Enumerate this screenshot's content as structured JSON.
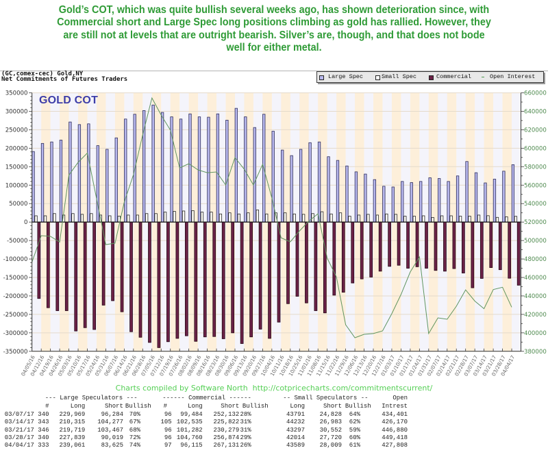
{
  "header": {
    "lines": [
      "Gold’s COT, which was quite bullish several weeks ago, has shown deterioration since, with",
      "Commercial short and Large Spec long positions climbing as gold has rallied. However, they",
      "are still not at levels that are outright bearish. Silver’s are, though, and that does not bode",
      "well for either metal."
    ]
  },
  "chart": {
    "source_line1": "(GC,comex-cec) Gold,NY",
    "source_line2": "Net Commitments of Futures Traders",
    "watermark_title": "GOLD COT",
    "legend": [
      {
        "label": "Large Spec",
        "color": "#b8b8ee"
      },
      {
        "label": "Small Spec",
        "color": "#fffdf5"
      },
      {
        "label": "Commercial",
        "color": "#6b2247"
      },
      {
        "label": "Open Interest",
        "color": "#5f955f"
      }
    ],
    "attribution": "Charts compiled by Software North  http://cotpricecharts.com/commitmentscurrent/"
  },
  "chart_data": {
    "type": "bar",
    "title": "Net Commitments of Futures Traders",
    "subtitle": "(GC,comex-cec) Gold,NY",
    "annotation": "GOLD COT",
    "xlabel": "",
    "ylabel": "",
    "legend_position": "top-right",
    "grid": true,
    "categories": [
      "04/05/16",
      "04/12/16",
      "04/19/16",
      "04/26/16",
      "05/03/16",
      "05/10/16",
      "05/17/16",
      "05/24/16",
      "05/31/16",
      "06/07/16",
      "06/14/16",
      "06/21/16",
      "06/28/16",
      "07/05/16",
      "07/12/16",
      "07/19/16",
      "07/26/16",
      "08/02/16",
      "08/09/16",
      "08/16/16",
      "08/23/16",
      "08/30/16",
      "09/06/16",
      "09/13/16",
      "09/20/16",
      "09/27/16",
      "10/04/16",
      "10/11/16",
      "10/18/16",
      "10/25/16",
      "11/01/16",
      "11/08/16",
      "11/15/16",
      "11/22/16",
      "11/29/16",
      "12/06/16",
      "12/13/16",
      "12/20/16",
      "12/27/16",
      "01/03/17",
      "01/10/17",
      "01/17/17",
      "01/24/17",
      "01/31/17",
      "02/07/17",
      "02/14/17",
      "02/21/17",
      "02/28/17",
      "03/07/17",
      "03/14/17",
      "03/21/17",
      "03/28/17",
      "04/04/17"
    ],
    "series": [
      {
        "name": "Large Spec",
        "type": "bar",
        "axis": "left",
        "color": "#b8b8ee",
        "values": [
          191000,
          213000,
          217000,
          222000,
          271000,
          264000,
          266000,
          207000,
          197000,
          228000,
          279000,
          292000,
          302000,
          317000,
          297000,
          285000,
          279000,
          293000,
          285000,
          284000,
          293000,
          276000,
          308000,
          285000,
          256000,
          292000,
          246000,
          195000,
          180000,
          197000,
          215000,
          217000,
          177000,
          167000,
          152000,
          136000,
          130000,
          115000,
          97000,
          95000,
          110000,
          107000,
          110000,
          120000,
          118000,
          110000,
          125000,
          164000,
          133685,
          106038,
          116252,
          137820,
          155436
        ]
      },
      {
        "name": "Small Spec",
        "type": "bar",
        "axis": "left",
        "color": "#fffdf5",
        "values": [
          17000,
          17000,
          23000,
          19000,
          23000,
          21000,
          23000,
          19000,
          17000,
          16000,
          19000,
          19000,
          23000,
          23000,
          27000,
          29000,
          30000,
          31000,
          27000,
          27000,
          22000,
          25000,
          22000,
          25000,
          33000,
          22000,
          25000,
          25000,
          22000,
          21000,
          23000,
          28000,
          22000,
          25000,
          16000,
          19000,
          21000,
          19000,
          22000,
          21000,
          16000,
          16000,
          17000,
          12500,
          17000,
          17000,
          16000,
          16000,
          18963,
          17249,
          12745,
          14294,
          15580
        ]
      },
      {
        "name": "Commercial",
        "type": "bar",
        "axis": "left",
        "color": "#6b2247",
        "values": [
          -207000,
          -232000,
          -240000,
          -240000,
          -295000,
          -286000,
          -291000,
          -225000,
          -213000,
          -243000,
          -297000,
          -312000,
          -326000,
          -340000,
          -324000,
          -315000,
          -308000,
          -323000,
          -311000,
          -310000,
          -316000,
          -300000,
          -329000,
          -311000,
          -290000,
          -315000,
          -271000,
          -221000,
          -201000,
          -219000,
          -240000,
          -246000,
          -198000,
          -190000,
          -165000,
          -154000,
          -149000,
          -133000,
          -120000,
          -117000,
          -125000,
          -121000,
          -125000,
          -131000,
          -133000,
          -126000,
          -138000,
          -178000,
          -152648,
          -123287,
          -128997,
          -152114,
          -171016
        ]
      },
      {
        "name": "Open Interest",
        "type": "line",
        "axis": "right",
        "color": "#5f955f",
        "values": [
          476700,
          505300,
          504500,
          498400,
          570900,
          584700,
          594800,
          545300,
          495600,
          497100,
          541600,
          571300,
          614400,
          654400,
          635900,
          619600,
          578700,
          583200,
          576500,
          573500,
          574300,
          560200,
          589900,
          577300,
          560200,
          582500,
          546100,
          503000,
          498600,
          510500,
          520900,
          529000,
          480800,
          460700,
          408800,
          394700,
          398400,
          399200,
          402100,
          420700,
          441500,
          465900,
          482300,
          399200,
          416200,
          414700,
          428800,
          446600,
          434401,
          426170,
          446880,
          449418,
          427808
        ]
      }
    ],
    "y_left": {
      "min": -350000,
      "max": 350000,
      "tick_labels": [
        "350000",
        "300000",
        "250000",
        "200000",
        "150000",
        "100000",
        "50000",
        "0",
        "-50000",
        "-100000",
        "-150000",
        "-200000",
        "-250000",
        "-300000",
        "-350000"
      ]
    },
    "y_right": {
      "min": 380000,
      "max": 660000,
      "tick_labels": [
        "660000",
        "640000",
        "620000",
        "600000",
        "580000",
        "560000",
        "540000",
        "520000",
        "500000",
        "480000",
        "460000",
        "440000",
        "420000",
        "400000",
        "380000"
      ]
    }
  },
  "table": {
    "group_headers": {
      "large": "--- Large Speculators ---",
      "commercial": "------ Commercial ------",
      "small": "-- Small Speculators --",
      "oi": "Open"
    },
    "col_headers": {
      "ls_n": "#",
      "ls_long": "Long",
      "ls_short": "Short",
      "ls_bull": "Bullish",
      "cm_n": "#",
      "cm_long": "Long",
      "cm_short": "Short",
      "cm_bull": "Bullish",
      "ss_long": "Long",
      "ss_short": "Short",
      "ss_bull": "Bullish",
      "oi": "Intrest"
    },
    "rows": [
      {
        "date": "03/07/17",
        "ls_n": "340",
        "ls_long": "229,969",
        "ls_short": "96,284",
        "ls_bull": "70%",
        "cm_n": "96",
        "cm_long": "99,484",
        "cm_short": "252,132",
        "cm_bull": "28%",
        "ss_long": "43791",
        "ss_short": "24,828",
        "ss_bull": "64%",
        "oi": "434,401"
      },
      {
        "date": "03/14/17",
        "ls_n": "343",
        "ls_long": "210,315",
        "ls_short": "104,277",
        "ls_bull": "67%",
        "cm_n": "105",
        "cm_long": "102,535",
        "cm_short": "225,822",
        "cm_bull": "31%",
        "ss_long": "44232",
        "ss_short": "26,983",
        "ss_bull": "62%",
        "oi": "426,170"
      },
      {
        "date": "03/21/17",
        "ls_n": "346",
        "ls_long": "219,719",
        "ls_short": "103,467",
        "ls_bull": "68%",
        "cm_n": "96",
        "cm_long": "101,282",
        "cm_short": "230,279",
        "cm_bull": "31%",
        "ss_long": "43297",
        "ss_short": "30,552",
        "ss_bull": "59%",
        "oi": "446,880"
      },
      {
        "date": "03/28/17",
        "ls_n": "340",
        "ls_long": "227,839",
        "ls_short": "90,019",
        "ls_bull": "72%",
        "cm_n": "96",
        "cm_long": "104,760",
        "cm_short": "256,874",
        "cm_bull": "29%",
        "ss_long": "42014",
        "ss_short": "27,720",
        "ss_bull": "60%",
        "oi": "449,418"
      },
      {
        "date": "04/04/17",
        "ls_n": "333",
        "ls_long": "239,061",
        "ls_short": "83,625",
        "ls_bull": "74%",
        "cm_n": "97",
        "cm_long": "96,115",
        "cm_short": "267,131",
        "cm_bull": "26%",
        "ss_long": "43589",
        "ss_short": "28,009",
        "ss_bull": "61%",
        "oi": "427,808"
      }
    ]
  }
}
